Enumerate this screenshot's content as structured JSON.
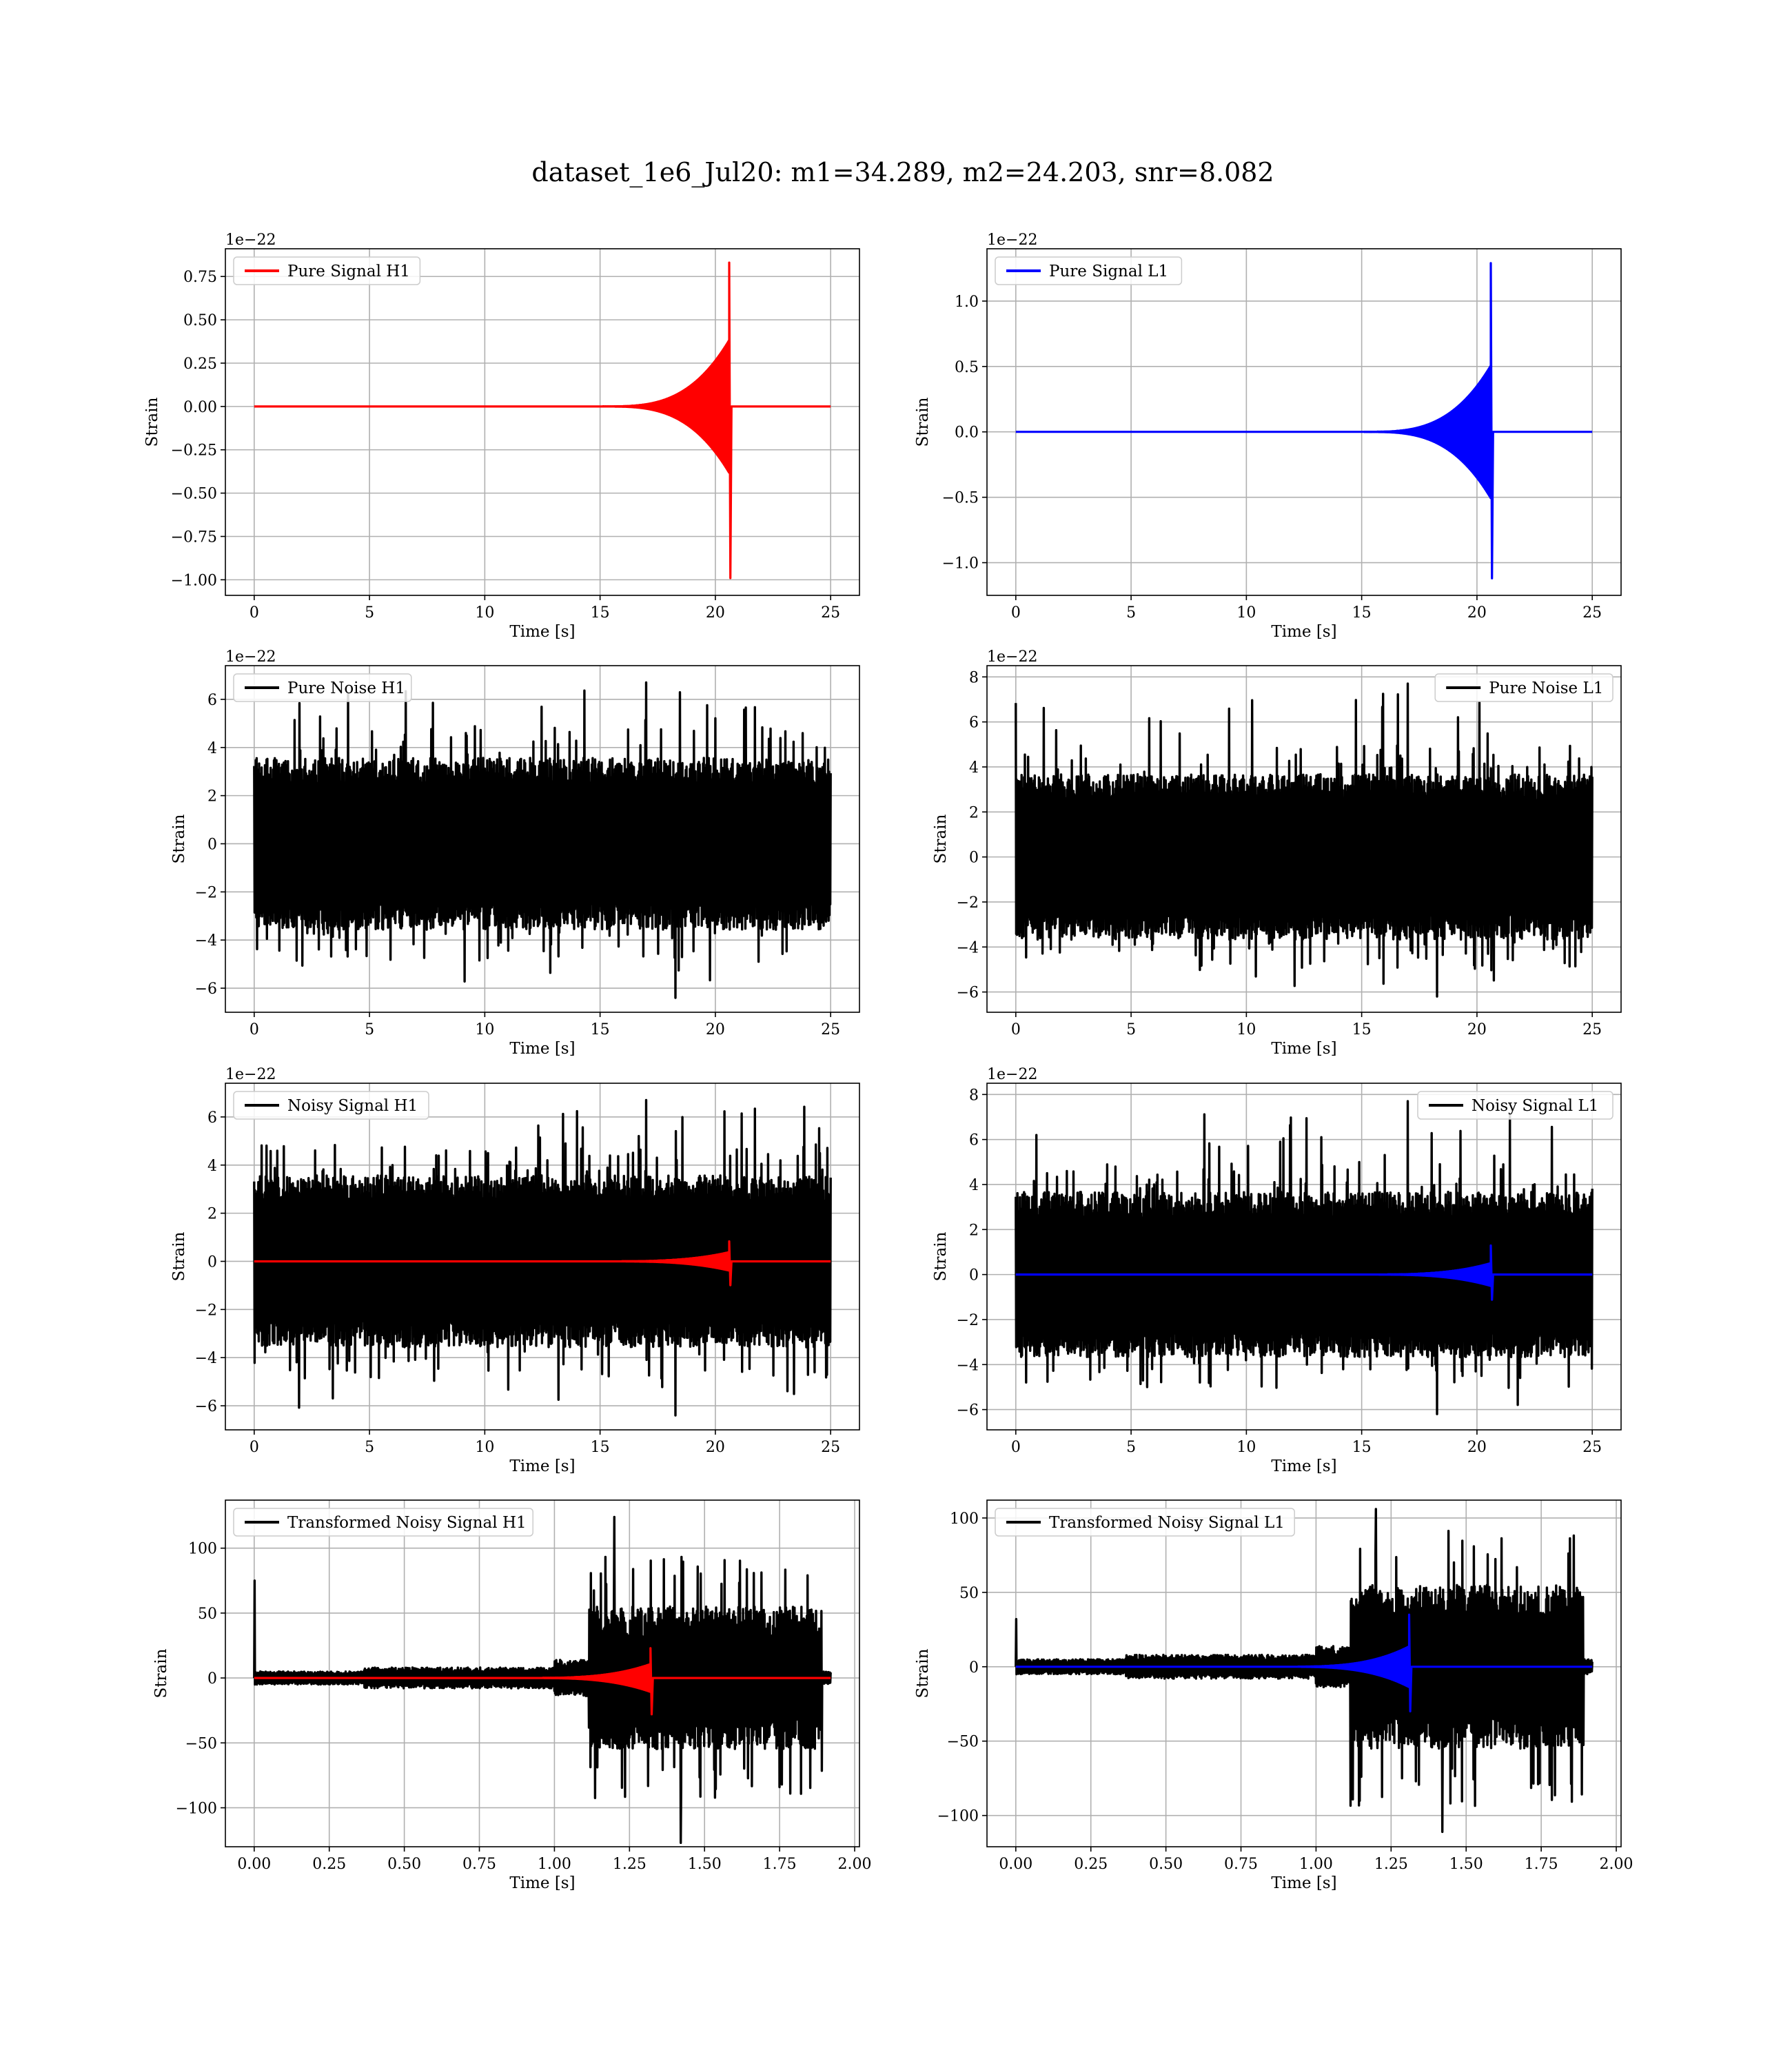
{
  "figure": {
    "title": "dataset_1e6_Jul20: m1=34.289, m2=24.203, snr=8.082"
  },
  "colors": {
    "h1_signal": "#ff0000",
    "l1_signal": "#0000ff",
    "noise": "#000000",
    "grid": "#b0b0b0"
  },
  "chart_data": [
    {
      "id": "pure-signal-h1",
      "type": "line",
      "xlabel": "Time [s]",
      "ylabel": "Strain",
      "offset_text": "1e−22",
      "xlim": [
        -1.25,
        26.25
      ],
      "ylim": [
        -1.09,
        0.91
      ],
      "xticks": [
        0,
        5,
        10,
        15,
        20,
        25
      ],
      "xtick_labels": [
        "0",
        "5",
        "10",
        "15",
        "20",
        "25"
      ],
      "yticks": [
        -1.0,
        -0.75,
        -0.5,
        -0.25,
        0.0,
        0.25,
        0.5,
        0.75
      ],
      "ytick_labels": [
        "−1.00",
        "−0.75",
        "−0.50",
        "−0.25",
        "0.00",
        "0.25",
        "0.50",
        "0.75"
      ],
      "grid": true,
      "legend_position": "upper-left",
      "series": [
        {
          "name": "Pure Signal H1",
          "kind": "chirp",
          "color": "#ff0000",
          "x_start": 0,
          "x_end": 25,
          "merger_time": 20.6,
          "peak_max": 0.83,
          "peak_min": -0.99
        }
      ]
    },
    {
      "id": "pure-signal-l1",
      "type": "line",
      "xlabel": "Time [s]",
      "ylabel": "Strain",
      "offset_text": "1e−22",
      "xlim": [
        -1.25,
        26.25
      ],
      "ylim": [
        -1.25,
        1.4
      ],
      "xticks": [
        0,
        5,
        10,
        15,
        20,
        25
      ],
      "xtick_labels": [
        "0",
        "5",
        "10",
        "15",
        "20",
        "25"
      ],
      "yticks": [
        -1.0,
        -0.5,
        0.0,
        0.5,
        1.0
      ],
      "ytick_labels": [
        "−1.0",
        "−0.5",
        "0.0",
        "0.5",
        "1.0"
      ],
      "grid": true,
      "legend_position": "upper-left",
      "series": [
        {
          "name": "Pure Signal L1",
          "kind": "chirp",
          "color": "#0000ff",
          "x_start": 0,
          "x_end": 25,
          "merger_time": 20.6,
          "peak_max": 1.29,
          "peak_min": -1.12
        }
      ]
    },
    {
      "id": "pure-noise-h1",
      "type": "line",
      "xlabel": "Time [s]",
      "ylabel": "Strain",
      "offset_text": "1e−22",
      "xlim": [
        -1.25,
        26.25
      ],
      "ylim": [
        -7.0,
        7.4
      ],
      "xticks": [
        0,
        5,
        10,
        15,
        20,
        25
      ],
      "xtick_labels": [
        "0",
        "5",
        "10",
        "15",
        "20",
        "25"
      ],
      "yticks": [
        -6,
        -4,
        -2,
        0,
        2,
        4,
        6
      ],
      "ytick_labels": [
        "−6",
        "−4",
        "−2",
        "0",
        "2",
        "4",
        "6"
      ],
      "grid": true,
      "legend_position": "upper-left",
      "series": [
        {
          "name": "Pure Noise H1",
          "kind": "noise",
          "color": "#000000",
          "x_start": 0,
          "x_end": 25,
          "band": 3.5,
          "peak_max": 6.7,
          "peak_min": -6.4
        }
      ]
    },
    {
      "id": "pure-noise-l1",
      "type": "line",
      "xlabel": "Time [s]",
      "ylabel": "Strain",
      "offset_text": "1e−22",
      "xlim": [
        -1.25,
        26.25
      ],
      "ylim": [
        -6.9,
        8.5
      ],
      "xticks": [
        0,
        5,
        10,
        15,
        20,
        25
      ],
      "xtick_labels": [
        "0",
        "5",
        "10",
        "15",
        "20",
        "25"
      ],
      "yticks": [
        -6,
        -4,
        -2,
        0,
        2,
        4,
        6,
        8
      ],
      "ytick_labels": [
        "−6",
        "−4",
        "−2",
        "0",
        "2",
        "4",
        "6",
        "8"
      ],
      "grid": true,
      "legend_position": "upper-right",
      "series": [
        {
          "name": "Pure Noise L1",
          "kind": "noise",
          "color": "#000000",
          "x_start": 0,
          "x_end": 25,
          "band": 3.6,
          "peak_max": 7.7,
          "peak_min": -6.2
        }
      ]
    },
    {
      "id": "noisy-signal-h1",
      "type": "line",
      "xlabel": "Time [s]",
      "ylabel": "Strain",
      "offset_text": "1e−22",
      "xlim": [
        -1.25,
        26.25
      ],
      "ylim": [
        -7.0,
        7.4
      ],
      "xticks": [
        0,
        5,
        10,
        15,
        20,
        25
      ],
      "xtick_labels": [
        "0",
        "5",
        "10",
        "15",
        "20",
        "25"
      ],
      "yticks": [
        -6,
        -4,
        -2,
        0,
        2,
        4,
        6
      ],
      "ytick_labels": [
        "−6",
        "−4",
        "−2",
        "0",
        "2",
        "4",
        "6"
      ],
      "grid": true,
      "legend_position": "upper-left",
      "series": [
        {
          "name": "Noisy Signal H1",
          "kind": "noise",
          "color": "#000000",
          "x_start": 0,
          "x_end": 25,
          "band": 3.5,
          "peak_max": 6.7,
          "peak_min": -6.4
        },
        {
          "kind": "chirp",
          "color": "#ff0000",
          "x_start": 0,
          "x_end": 25,
          "merger_time": 20.6,
          "peak_max": 0.83,
          "peak_min": -0.99
        }
      ]
    },
    {
      "id": "noisy-signal-l1",
      "type": "line",
      "xlabel": "Time [s]",
      "ylabel": "Strain",
      "offset_text": "1e−22",
      "xlim": [
        -1.25,
        26.25
      ],
      "ylim": [
        -6.9,
        8.5
      ],
      "xticks": [
        0,
        5,
        10,
        15,
        20,
        25
      ],
      "xtick_labels": [
        "0",
        "5",
        "10",
        "15",
        "20",
        "25"
      ],
      "yticks": [
        -6,
        -4,
        -2,
        0,
        2,
        4,
        6,
        8
      ],
      "ytick_labels": [
        "−6",
        "−4",
        "−2",
        "0",
        "2",
        "4",
        "6",
        "8"
      ],
      "grid": true,
      "legend_position": "upper-right",
      "series": [
        {
          "name": "Noisy Signal L1",
          "kind": "noise",
          "color": "#000000",
          "x_start": 0,
          "x_end": 25,
          "band": 3.6,
          "peak_max": 7.7,
          "peak_min": -6.2
        },
        {
          "kind": "chirp",
          "color": "#0000ff",
          "x_start": 0,
          "x_end": 25,
          "merger_time": 20.6,
          "peak_max": 1.29,
          "peak_min": -1.12
        }
      ]
    },
    {
      "id": "transformed-noisy-signal-h1",
      "type": "line",
      "xlabel": "Time [s]",
      "ylabel": "Strain",
      "offset_text": "",
      "xlim": [
        -0.096,
        2.016
      ],
      "ylim": [
        -130,
        137
      ],
      "xticks": [
        0,
        0.25,
        0.5,
        0.75,
        1.0,
        1.25,
        1.5,
        1.75,
        2.0
      ],
      "xtick_labels": [
        "0.00",
        "0.25",
        "0.50",
        "0.75",
        "1.00",
        "1.25",
        "1.50",
        "1.75",
        "2.00"
      ],
      "yticks": [
        -100,
        -50,
        0,
        50,
        100
      ],
      "ytick_labels": [
        "−100",
        "−50",
        "0",
        "50",
        "100"
      ],
      "grid": true,
      "legend_position": "upper-left",
      "series": [
        {
          "name": "Transformed Noisy Signal H1",
          "kind": "whitened",
          "color": "#000000",
          "x_start": 0,
          "x_end": 1.92,
          "initial_spike": 75,
          "peak_max": 124,
          "peak_min": -127
        },
        {
          "kind": "chirp",
          "color": "#ff0000",
          "x_start": 0,
          "x_end": 1.92,
          "merger_time": 1.32,
          "peak_max": 23,
          "peak_min": -28
        }
      ]
    },
    {
      "id": "transformed-noisy-signal-l1",
      "type": "line",
      "xlabel": "Time [s]",
      "ylabel": "Strain",
      "offset_text": "",
      "xlim": [
        -0.096,
        2.016
      ],
      "ylim": [
        -121,
        112
      ],
      "xticks": [
        0,
        0.25,
        0.5,
        0.75,
        1.0,
        1.25,
        1.5,
        1.75,
        2.0
      ],
      "xtick_labels": [
        "0.00",
        "0.25",
        "0.50",
        "0.75",
        "1.00",
        "1.25",
        "1.50",
        "1.75",
        "2.00"
      ],
      "yticks": [
        -100,
        -50,
        0,
        50,
        100
      ],
      "ytick_labels": [
        "−100",
        "−50",
        "0",
        "50",
        "100"
      ],
      "grid": true,
      "legend_position": "upper-left",
      "series": [
        {
          "name": "Transformed Noisy Signal L1",
          "kind": "whitened",
          "color": "#000000",
          "x_start": 0,
          "x_end": 1.92,
          "initial_spike": 32,
          "peak_max": 106,
          "peak_min": -111
        },
        {
          "kind": "chirp",
          "color": "#0000ff",
          "x_start": 0,
          "x_end": 1.92,
          "merger_time": 1.31,
          "peak_max": 35,
          "peak_min": -30
        }
      ]
    }
  ]
}
